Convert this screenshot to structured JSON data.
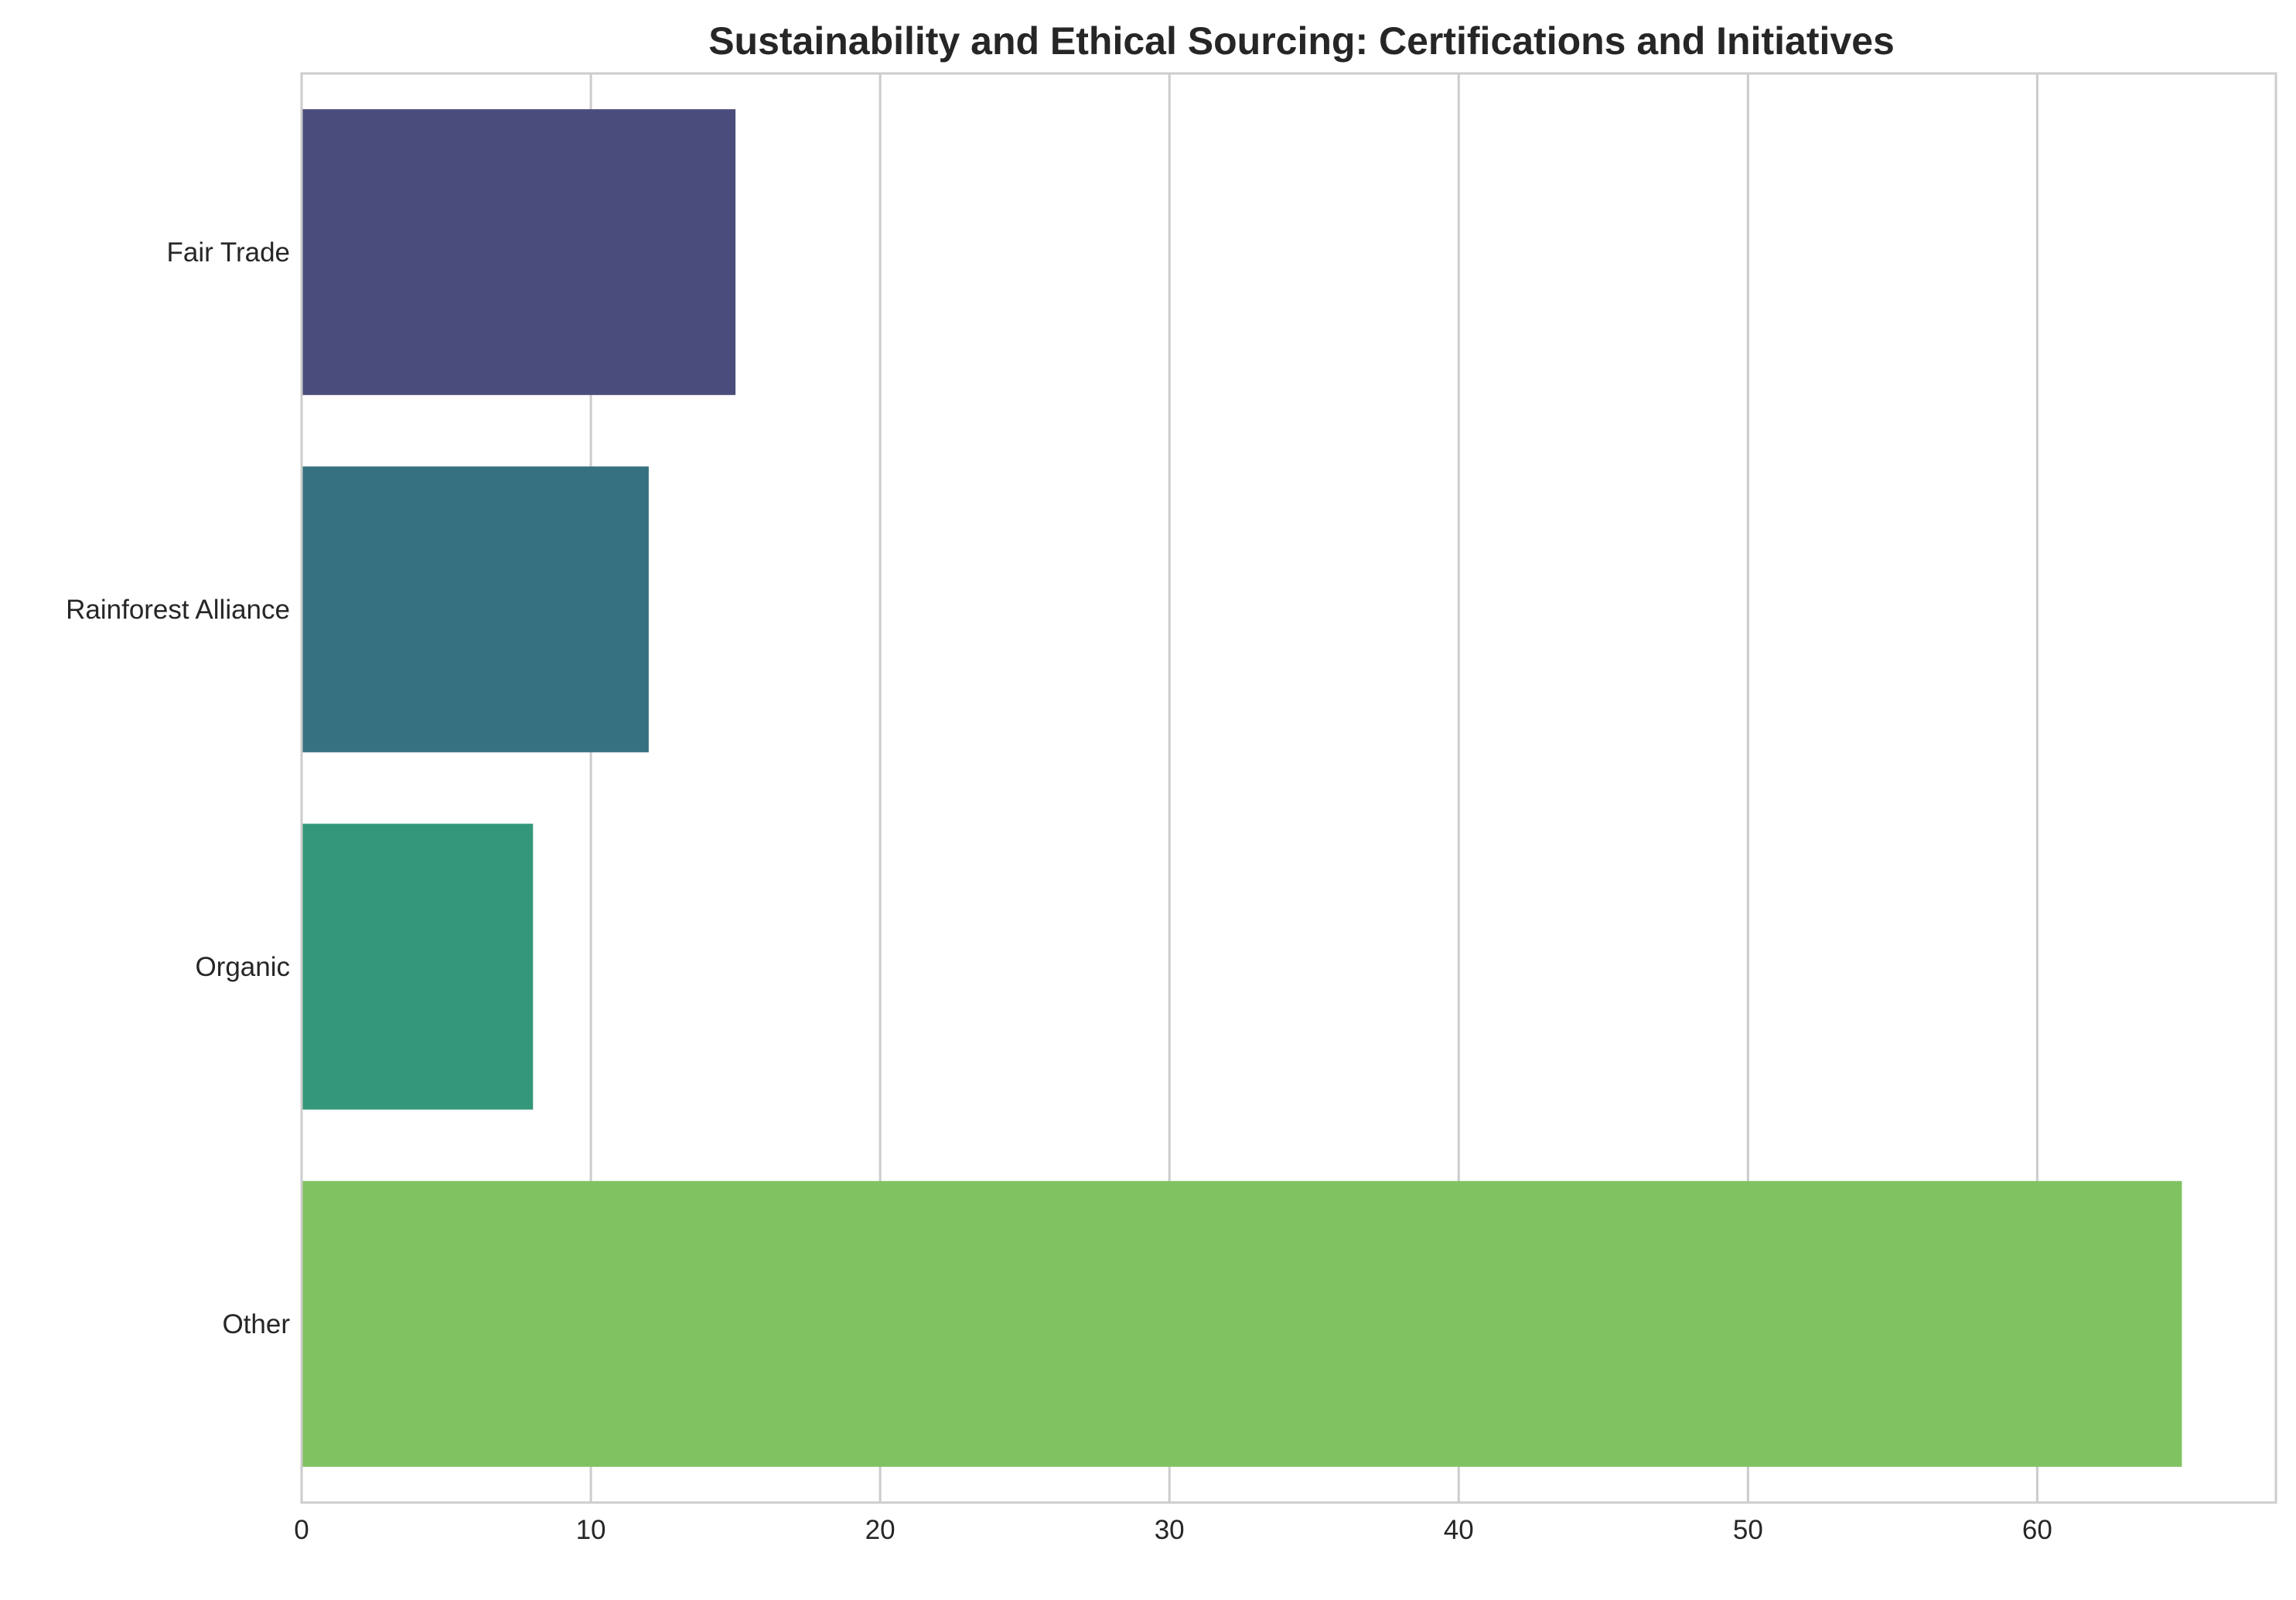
{
  "chart_data": {
    "type": "bar",
    "orientation": "horizontal",
    "title": "Sustainability and Ethical Sourcing: Certifications and Initiatives",
    "xlabel": "",
    "ylabel": "",
    "categories": [
      "Fair Trade",
      "Rainforest Alliance",
      "Organic",
      "Other"
    ],
    "values": [
      15,
      12,
      8,
      65
    ],
    "colors": [
      "#4a4c7b",
      "#367180",
      "#35977a",
      "#80c262"
    ],
    "xlim": [
      0,
      68.25
    ],
    "xticks": [
      "0",
      "10",
      "20",
      "30",
      "40",
      "50",
      "60"
    ],
    "grid": "vertical",
    "legend": "none"
  }
}
